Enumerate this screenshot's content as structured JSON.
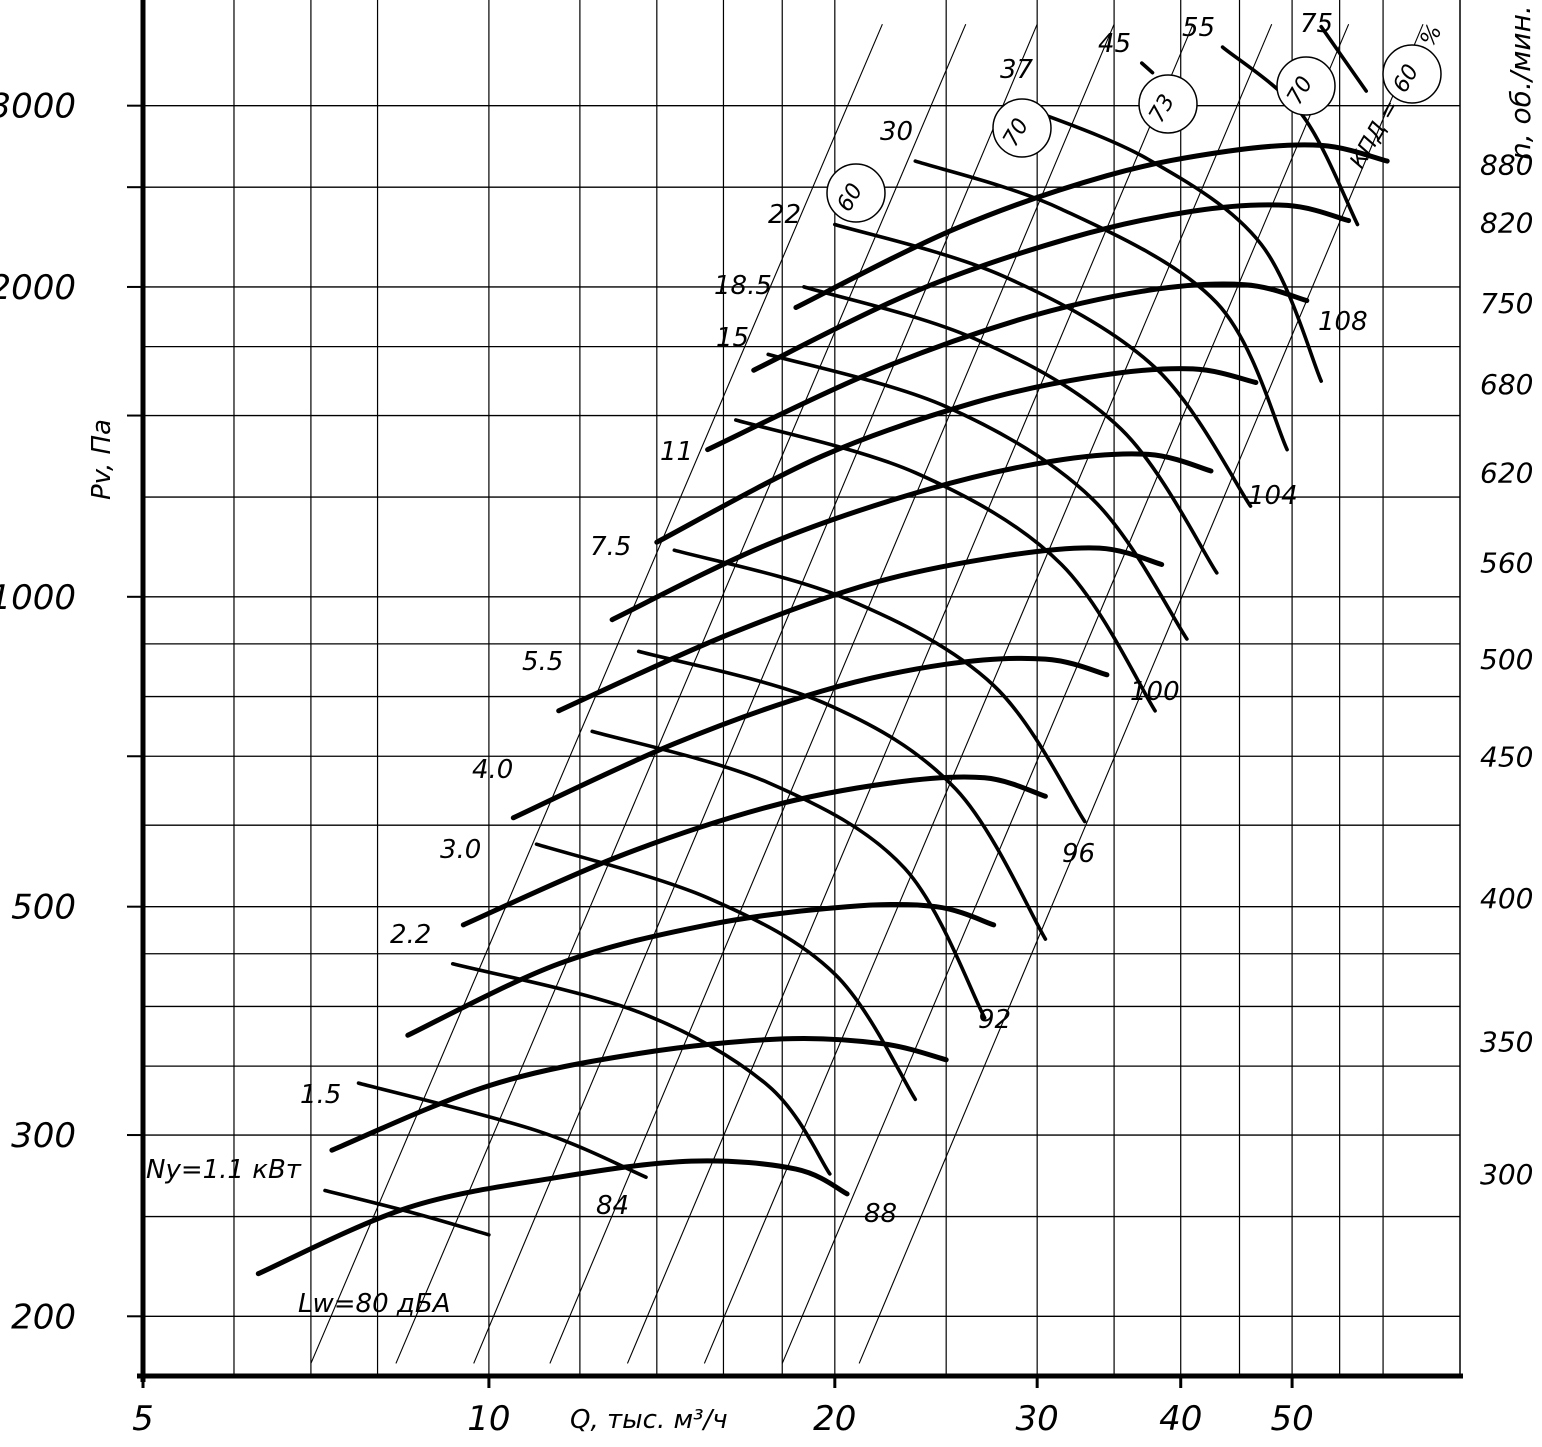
{
  "chart_data": {
    "type": "line",
    "title": "",
    "xlabel": "Q, тыс. м³/ч",
    "ylabel": "Pv, Па",
    "y2label": "n,  об./мин.",
    "xscale": "log",
    "yscale": "log",
    "xlim": [
      5,
      70
    ],
    "ylim": [
      175,
      3800
    ],
    "x_ticks": [
      "5",
      "10",
      "20",
      "30",
      "40",
      "50"
    ],
    "y_ticks": [
      "3000",
      "2000",
      "1000",
      "500",
      "300",
      "200"
    ],
    "rpm_ticks": [
      "880",
      "820",
      "750",
      "680",
      "620",
      "560",
      "500",
      "450",
      "400",
      "350",
      "300"
    ],
    "rpm_curves": [
      {
        "name": "300",
        "points": [
          [
            6.3,
            220
          ],
          [
            8.5,
            255
          ],
          [
            11.5,
            273
          ],
          [
            15,
            283
          ],
          [
            18.5,
            278
          ],
          [
            20.5,
            263
          ]
        ]
      },
      {
        "name": "350",
        "points": [
          [
            7.3,
            290
          ],
          [
            10,
            335
          ],
          [
            13.5,
            360
          ],
          [
            18,
            372
          ],
          [
            22,
            368
          ],
          [
            25,
            355
          ]
        ]
      },
      {
        "name": "400",
        "points": [
          [
            8.5,
            375
          ],
          [
            11.5,
            440
          ],
          [
            15.5,
            480
          ],
          [
            20.5,
            500
          ],
          [
            24.5,
            500
          ],
          [
            27.5,
            480
          ]
        ]
      },
      {
        "name": "450",
        "points": [
          [
            9.5,
            480
          ],
          [
            13,
            560
          ],
          [
            17.5,
            625
          ],
          [
            22.5,
            660
          ],
          [
            27,
            667
          ],
          [
            30.5,
            640
          ]
        ]
      },
      {
        "name": "500",
        "points": [
          [
            10.5,
            610
          ],
          [
            14.5,
            720
          ],
          [
            19.5,
            810
          ],
          [
            25,
            860
          ],
          [
            30.5,
            870
          ],
          [
            34.5,
            840
          ]
        ]
      },
      {
        "name": "560",
        "points": [
          [
            11.5,
            775
          ],
          [
            16,
            915
          ],
          [
            21.5,
            1030
          ],
          [
            28,
            1095
          ],
          [
            34,
            1115
          ],
          [
            38.5,
            1075
          ]
        ]
      },
      {
        "name": "620",
        "points": [
          [
            12.8,
            950
          ],
          [
            17.5,
            1125
          ],
          [
            24,
            1270
          ],
          [
            31,
            1355
          ],
          [
            37.5,
            1375
          ],
          [
            42.5,
            1325
          ]
        ]
      },
      {
        "name": "680",
        "points": [
          [
            14,
            1130
          ],
          [
            19.5,
            1370
          ],
          [
            26.5,
            1545
          ],
          [
            34,
            1640
          ],
          [
            41,
            1665
          ],
          [
            46.5,
            1615
          ]
        ]
      },
      {
        "name": "750",
        "points": [
          [
            15.5,
            1390
          ],
          [
            21.5,
            1650
          ],
          [
            29,
            1860
          ],
          [
            37.5,
            1985
          ],
          [
            45.5,
            2010
          ],
          [
            51.5,
            1940
          ]
        ]
      },
      {
        "name": "820",
        "points": [
          [
            17,
            1660
          ],
          [
            23.5,
            1980
          ],
          [
            32,
            2230
          ],
          [
            41,
            2370
          ],
          [
            49.5,
            2400
          ],
          [
            56,
            2320
          ]
        ]
      },
      {
        "name": "880",
        "points": [
          [
            18.5,
            1910
          ],
          [
            25.5,
            2280
          ],
          [
            34.5,
            2565
          ],
          [
            44,
            2710
          ],
          [
            53,
            2745
          ],
          [
            60.5,
            2650
          ]
        ]
      }
    ],
    "power_curves": [
      {
        "name": "Ny=1.1 кВт",
        "points": [
          [
            7.2,
            265
          ],
          [
            8.6,
            252
          ],
          [
            10,
            240
          ]
        ]
      },
      {
        "name": "1.5",
        "points": [
          [
            7.7,
            337
          ],
          [
            11,
            303
          ],
          [
            13.7,
            273
          ]
        ]
      },
      {
        "name": "2.2",
        "points": [
          [
            9.3,
            440
          ],
          [
            13.5,
            395
          ],
          [
            17.5,
            335
          ],
          [
            19.8,
            275
          ]
        ]
      },
      {
        "name": "3.0",
        "points": [
          [
            11,
            575
          ],
          [
            15.5,
            510
          ],
          [
            20,
            430
          ],
          [
            23.5,
            325
          ]
        ]
      },
      {
        "name": "4.0",
        "points": [
          [
            12.3,
            740
          ],
          [
            17.5,
            660
          ],
          [
            23,
            545
          ],
          [
            27,
            390
          ]
        ]
      },
      {
        "name": "5.5",
        "points": [
          [
            13.5,
            885
          ],
          [
            19.5,
            790
          ],
          [
            25.5,
            650
          ],
          [
            30.5,
            465
          ]
        ]
      },
      {
        "name": "7.5",
        "points": [
          [
            14.5,
            1110
          ],
          [
            20.5,
            995
          ],
          [
            27.5,
            820
          ],
          [
            33,
            605
          ]
        ]
      },
      {
        "name": "11",
        "points": [
          [
            16.4,
            1485
          ],
          [
            23.5,
            1320
          ],
          [
            31.5,
            1075
          ],
          [
            38,
            775
          ]
        ]
      },
      {
        "name": "15",
        "points": [
          [
            17.5,
            1720
          ],
          [
            25,
            1530
          ],
          [
            33.5,
            1245
          ],
          [
            40.5,
            910
          ]
        ]
      },
      {
        "name": "18.5",
        "points": [
          [
            18.8,
            2000
          ],
          [
            26.5,
            1780
          ],
          [
            35.5,
            1455
          ],
          [
            43,
            1055
          ]
        ]
      },
      {
        "name": "22",
        "points": [
          [
            20,
            2300
          ],
          [
            28,
            2050
          ],
          [
            38,
            1670
          ],
          [
            46,
            1225
          ]
        ]
      },
      {
        "name": "30",
        "points": [
          [
            23.5,
            2650
          ],
          [
            31.5,
            2380
          ],
          [
            43,
            1930
          ],
          [
            49.5,
            1390
          ]
        ]
      },
      {
        "name": "37",
        "points": [
          [
            29,
            3000
          ],
          [
            37.5,
            2660
          ],
          [
            47,
            2200
          ],
          [
            53,
            1620
          ]
        ]
      },
      {
        "name": "45",
        "points": [
          [
            37,
            3300
          ],
          [
            37.8,
            3230
          ]
        ]
      },
      {
        "name": "55",
        "points": [
          [
            43.5,
            3420
          ],
          [
            51,
            2940
          ],
          [
            57,
            2300
          ]
        ]
      },
      {
        "name": "75",
        "points": [
          [
            53,
            3580
          ],
          [
            58,
            3100
          ]
        ]
      }
    ],
    "noise_lines": [
      "Lw=80 дБА",
      "84",
      "88",
      "92",
      "96",
      "100",
      "104",
      "108"
    ],
    "efficiency_circles": [
      "60",
      "70",
      "73",
      "70",
      "60"
    ],
    "efficiency_label": "КПД =",
    "efficiency_unit": "%"
  }
}
